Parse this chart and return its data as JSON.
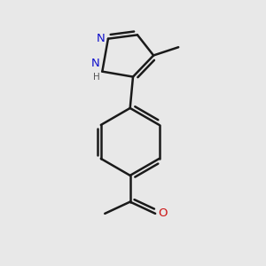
{
  "background_color": "#e8e8e8",
  "bond_color": "#1a1a1a",
  "bond_width": 1.8,
  "N_color": "#1111cc",
  "O_color": "#cc1111",
  "H_color": "#555555",
  "figsize": [
    3.0,
    3.0
  ],
  "dpi": 100,
  "xlim": [
    0.15,
    0.85
  ],
  "ylim": [
    0.05,
    0.95
  ]
}
